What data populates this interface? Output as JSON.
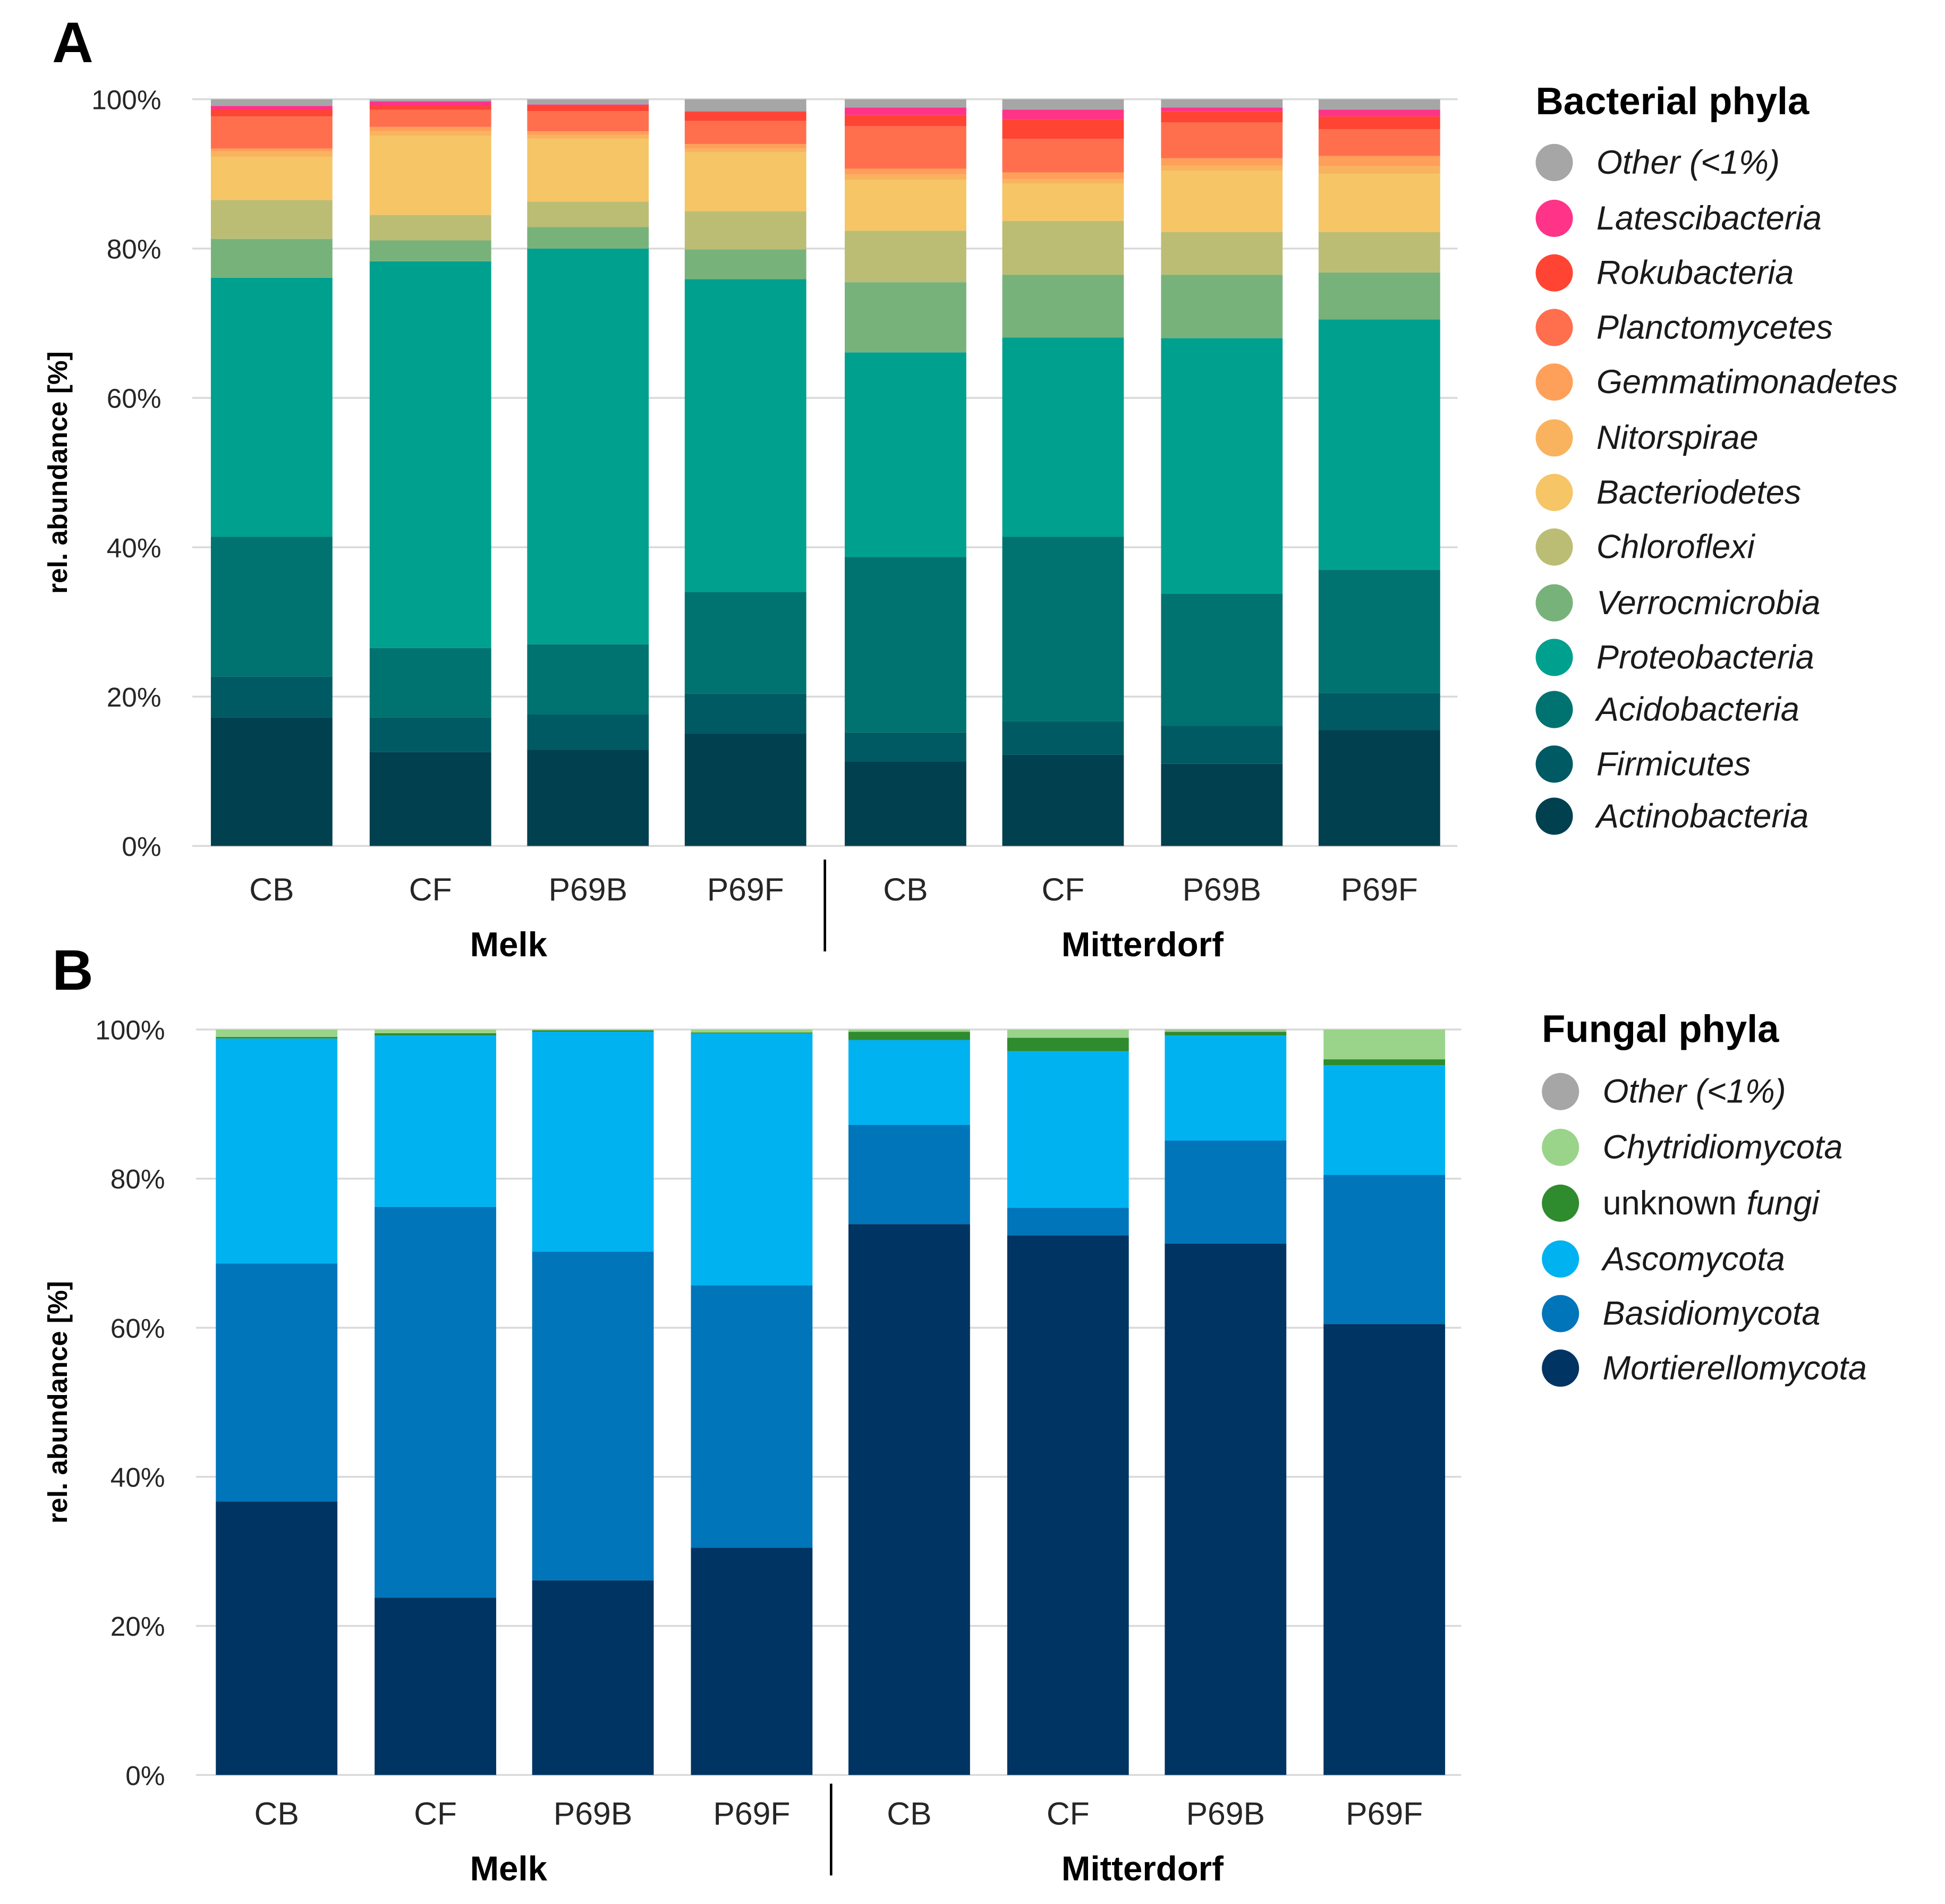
{
  "chart_data": [
    {
      "type": "bar",
      "stacked": true,
      "panel_label": "A",
      "ylabel": "rel. abundance [%]",
      "ylim": [
        0,
        100
      ],
      "yticks": [
        "0%",
        "20%",
        "40%",
        "60%",
        "80%",
        "100%"
      ],
      "grid": true,
      "legend_title": "Bacterial phyla",
      "legend_position": "right",
      "categories": [
        "CB",
        "CF",
        "P69B",
        "P69F",
        "CB",
        "CF",
        "P69B",
        "P69F"
      ],
      "groups": [
        {
          "name": "Melk",
          "count": 4
        },
        {
          "name": "Mitterdorf",
          "count": 4
        }
      ],
      "series": [
        {
          "name": "Actinobacteria",
          "color": "#00404f",
          "values": [
            17.2,
            12.6,
            12.9,
            15.1,
            11.3,
            12.2,
            11.0,
            15.5
          ]
        },
        {
          "name": "Firmicutes",
          "color": "#005a63",
          "values": [
            5.5,
            4.6,
            4.7,
            5.3,
            3.9,
            4.5,
            5.1,
            5.0
          ]
        },
        {
          "name": "Acidobacteria",
          "color": "#007370",
          "values": [
            18.7,
            9.3,
            9.4,
            13.6,
            23.5,
            24.7,
            17.7,
            16.5
          ]
        },
        {
          "name": "Proteobacteria",
          "color": "#00a08f",
          "values": [
            34.7,
            51.8,
            53.0,
            41.9,
            27.4,
            26.7,
            34.2,
            33.5
          ]
        },
        {
          "name": "Verrocmicrobia",
          "color": "#78b27b",
          "values": [
            5.2,
            2.8,
            2.9,
            4.0,
            9.4,
            8.4,
            8.5,
            6.3
          ]
        },
        {
          "name": "Chloroflexi",
          "color": "#bcbd74",
          "values": [
            5.2,
            3.4,
            3.4,
            5.1,
            6.9,
            7.2,
            5.7,
            5.4
          ]
        },
        {
          "name": "Bacteriodetes",
          "color": "#f5c566",
          "values": [
            5.8,
            10.6,
            8.4,
            7.9,
            6.8,
            5.0,
            8.2,
            7.8
          ]
        },
        {
          "name": "Nitorspirae",
          "color": "#f9b35e",
          "values": [
            0.7,
            0.6,
            0.5,
            0.5,
            0.7,
            0.6,
            0.7,
            1.0
          ]
        },
        {
          "name": "Gemmatimonadetes",
          "color": "#ffa05a",
          "values": [
            0.4,
            0.6,
            0.5,
            0.6,
            0.8,
            0.9,
            1.0,
            1.4
          ]
        },
        {
          "name": "Planctomycetes",
          "color": "#ff6f4e",
          "values": [
            4.3,
            2.3,
            2.7,
            3.1,
            5.7,
            4.5,
            4.8,
            3.6
          ]
        },
        {
          "name": "Rokubacteria",
          "color": "#ff4433",
          "values": [
            0.9,
            0.5,
            0.8,
            1.2,
            1.5,
            2.6,
            1.5,
            1.7
          ]
        },
        {
          "name": "Latescibacteria",
          "color": "#ff3388",
          "values": [
            0.5,
            0.6,
            0.1,
            0.1,
            1.0,
            1.3,
            0.5,
            0.9
          ]
        },
        {
          "name": "Other (<1%)",
          "color": "#a6a6a6",
          "values": [
            0.9,
            0.3,
            0.7,
            1.6,
            1.1,
            1.4,
            1.1,
            1.4
          ]
        }
      ]
    },
    {
      "type": "bar",
      "stacked": true,
      "panel_label": "B",
      "ylabel": "rel. abundance [%]",
      "ylim": [
        0,
        100
      ],
      "yticks": [
        "0%",
        "20%",
        "40%",
        "60%",
        "80%",
        "100%"
      ],
      "grid": true,
      "legend_title": "Fungal phyla",
      "legend_position": "right",
      "categories": [
        "CB",
        "CF",
        "P69B",
        "P69F",
        "CB",
        "CF",
        "P69B",
        "P69F"
      ],
      "groups": [
        {
          "name": "Melk",
          "count": 4
        },
        {
          "name": "Mitterdorf",
          "count": 4
        }
      ],
      "series": [
        {
          "name": "Mortierellomycota",
          "color": "#003462",
          "values": [
            36.7,
            23.8,
            26.1,
            30.5,
            73.9,
            72.4,
            71.3,
            60.5
          ]
        },
        {
          "name": "Basidiomycota",
          "color": "#0075b9",
          "values": [
            31.9,
            52.4,
            44.1,
            35.2,
            13.3,
            3.7,
            13.8,
            20.0
          ]
        },
        {
          "name": "Ascomycota",
          "color": "#00b2f0",
          "values": [
            30.2,
            23.0,
            29.5,
            33.8,
            11.4,
            21.0,
            14.1,
            14.7
          ]
        },
        {
          "name": "unknown fungi",
          "name_plain": "unknown",
          "name_italic": "fungi",
          "color": "#2e8b2e",
          "values": [
            0.2,
            0.3,
            0.2,
            0.1,
            1.1,
            1.8,
            0.5,
            0.8
          ]
        },
        {
          "name": "Chytridiomycota",
          "color": "#9ad48a",
          "values": [
            1.0,
            0.5,
            0.1,
            0.4,
            0.3,
            1.1,
            0.2,
            4.0
          ]
        },
        {
          "name": "Other (<1%)",
          "color": "#a6a6a6",
          "values": [
            0.0,
            0.0,
            0.0,
            0.0,
            0.0,
            0.0,
            0.1,
            0.0
          ]
        }
      ]
    }
  ]
}
